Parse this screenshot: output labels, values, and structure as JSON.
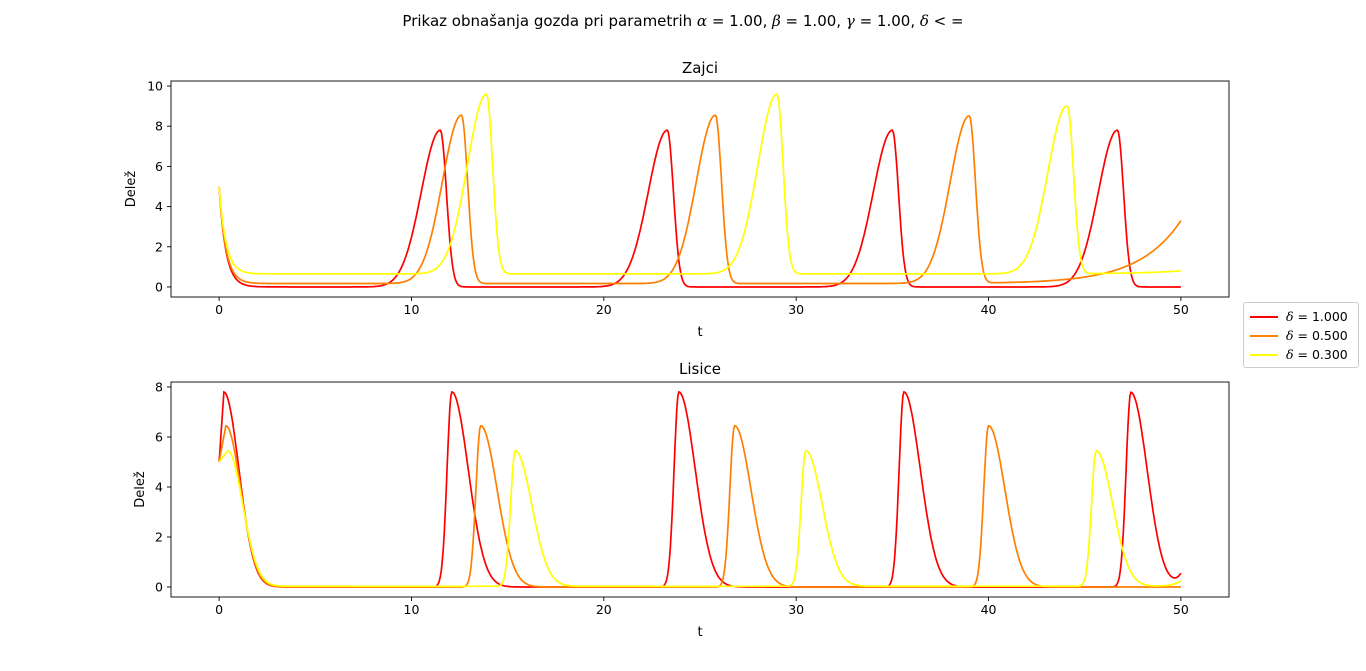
{
  "figure": {
    "suptitle_prefix": "Prikaz obnašanja gozda pri parametrih ",
    "suptitle_params": [
      {
        "symbol": "α",
        "value": "1.00"
      },
      {
        "symbol": "β",
        "value": "1.00"
      },
      {
        "symbol": "γ",
        "value": "1.00"
      }
    ],
    "suptitle_tail_symbol": "δ",
    "suptitle_tail": " < ="
  },
  "chart_data": [
    {
      "type": "line",
      "title": "Zajci",
      "xlabel": "t",
      "ylabel": "Delež",
      "xlim": [
        -2.5,
        52.5
      ],
      "ylim": [
        -0.5,
        10.25
      ],
      "xticks": [
        0,
        10,
        20,
        30,
        40,
        50
      ],
      "yticks": [
        0,
        2,
        4,
        6,
        8,
        10
      ],
      "grid": false,
      "series": [
        {
          "name": "δ = 1.000",
          "color": "#ff0000",
          "peaks": [
            11.5,
            23.3,
            35.0,
            46.7
          ],
          "peak_value": 7.8,
          "min_value": 0.0,
          "start": 5.0
        },
        {
          "name": "δ = 0.500",
          "color": "#ff7f00",
          "peaks": [
            12.6,
            25.8,
            39.0
          ],
          "peak_value": 8.55,
          "min_value": 0.17,
          "start": 5.0,
          "end": 3.3
        },
        {
          "name": "δ = 0.300",
          "color": "#ffff00",
          "peaks": [
            13.9,
            29.0,
            44.1
          ],
          "peak_value": 9.6,
          "min_value": 0.65,
          "start": 5.0,
          "end": 0.8
        }
      ]
    },
    {
      "type": "line",
      "title": "Lisice",
      "xlabel": "t",
      "ylabel": "Delež",
      "xlim": [
        -2.5,
        52.5
      ],
      "ylim": [
        -0.4,
        8.2
      ],
      "xticks": [
        0,
        10,
        20,
        30,
        40,
        50
      ],
      "yticks": [
        0,
        2,
        4,
        6,
        8
      ],
      "grid": false,
      "series": [
        {
          "name": "δ = 1.000",
          "color": "#ff0000",
          "peaks": [
            0.25,
            12.1,
            23.9,
            35.6,
            47.4
          ],
          "peak_value": 7.8,
          "min_value": 0.0,
          "start": 5.0,
          "end": 0.55
        },
        {
          "name": "δ = 0.500",
          "color": "#ff7f00",
          "peaks": [
            0.35,
            13.6,
            26.8,
            40.0
          ],
          "peak_value": 6.45,
          "min_value": 0.0,
          "start": 5.0,
          "end": 0.0
        },
        {
          "name": "δ = 0.300",
          "color": "#ffff00",
          "peaks": [
            0.45,
            15.4,
            30.5,
            45.6
          ],
          "peak_value": 5.45,
          "min_value": 0.03,
          "start": 5.0,
          "end": 0.25
        }
      ]
    }
  ],
  "legend": {
    "placement": "right",
    "entries": [
      {
        "symbol": "δ",
        "text": " = 1.000",
        "color": "#ff0000"
      },
      {
        "symbol": "δ",
        "text": " = 0.500",
        "color": "#ff7f00"
      },
      {
        "symbol": "δ",
        "text": " = 0.300",
        "color": "#ffff00"
      }
    ]
  }
}
